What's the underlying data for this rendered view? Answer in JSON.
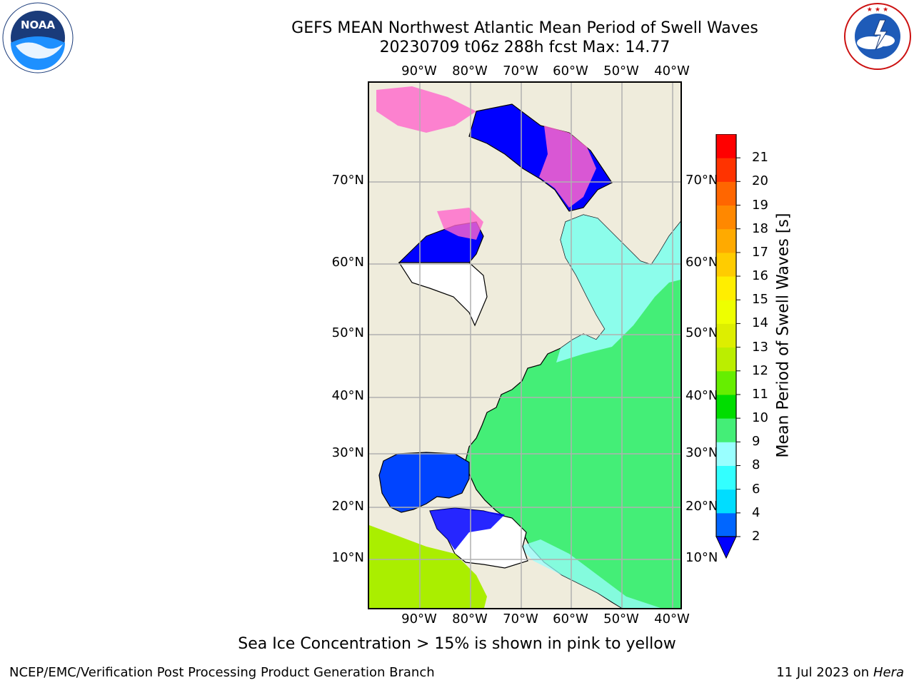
{
  "title_line1": "GEFS MEAN Northwest Atlantic Mean Period of Swell Waves",
  "title_line2": "20230709 t06z 288h fcst   Max: 14.77",
  "lon_labels": [
    "90°W",
    "80°W",
    "70°W",
    "60°W",
    "50°W",
    "40°W"
  ],
  "lat_labels": [
    "70°N",
    "60°N",
    "50°N",
    "40°N",
    "30°N",
    "20°N",
    "10°N"
  ],
  "colorbar": {
    "label": "Mean Period of Swell Waves [s]",
    "ticks": [
      "2",
      "4",
      "6",
      "8",
      "9",
      "10",
      "11",
      "12",
      "13",
      "14",
      "15",
      "16",
      "17",
      "18",
      "19",
      "20",
      "21"
    ],
    "colors": [
      "#0066ff",
      "#00ddff",
      "#33ffff",
      "#99ffff",
      "#44ee77",
      "#00dd00",
      "#66ee00",
      "#bbee00",
      "#ddee00",
      "#eeff00",
      "#ffee00",
      "#ffcc00",
      "#ffaa00",
      "#ff8800",
      "#ff6600",
      "#ff3300",
      "#ff0000"
    ],
    "under_color": "#0000ff"
  },
  "map_colors": {
    "land": "#efecdc",
    "ocean_main": "#44ee77",
    "ocean_light": "#99ffff",
    "ocean_low": "#0000ff",
    "ice": "#ff66cc",
    "grid": "#b0b0b0"
  },
  "footnote": "Sea Ice Concentration > 15% is shown in pink to yellow",
  "credit": "NCEP/EMC/Verification Post Processing Product Generation Branch",
  "date_text": "11 Jul 2023 on ",
  "date_machine": "Hera",
  "logo_left": {
    "text": "NOAA",
    "ring_text": "NATIONAL OCEANIC AND ATMOSPHERIC ADMINISTRATION · U.S. DEPARTMENT OF COMMERCE"
  },
  "logo_right": {
    "ring_text": "NATIONAL WEATHER SERVICE"
  }
}
